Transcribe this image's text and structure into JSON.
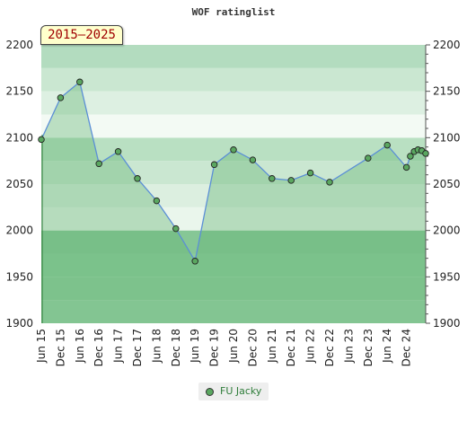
{
  "chart_data": {
    "type": "line",
    "title": "WOF ratinglist",
    "period_badge": "2015–2025",
    "xlabel": "",
    "ylabel": "",
    "ylim": [
      1900,
      2200
    ],
    "yticks": [
      1900,
      1950,
      2000,
      2050,
      2100,
      2150,
      2200
    ],
    "x_tick_labels": [
      "Jun 15",
      "Dec 15",
      "Jun 16",
      "Dec 16",
      "Jun 17",
      "Dec 17",
      "Jun 18",
      "Dec 18",
      "Jun 19",
      "Dec 19",
      "Jun 20",
      "Dec 20",
      "Jun 21",
      "Dec 21",
      "Jun 22",
      "Dec 22",
      "Jun 23",
      "Dec 23",
      "Jun 24",
      "Dec 24"
    ],
    "xlim": [
      2015.5,
      2025.5
    ],
    "legend_position": "bottom-center",
    "grid": false,
    "series": [
      {
        "name": "FU Jacky",
        "color": "#5aa760",
        "line_color": "#5b8fd6",
        "points": [
          {
            "x": 2015.5,
            "y": 2098
          },
          {
            "x": 2016.0,
            "y": 2143
          },
          {
            "x": 2016.5,
            "y": 2160
          },
          {
            "x": 2017.0,
            "y": 2072
          },
          {
            "x": 2017.5,
            "y": 2085
          },
          {
            "x": 2018.0,
            "y": 2056
          },
          {
            "x": 2018.5,
            "y": 2032
          },
          {
            "x": 2019.0,
            "y": 2002
          },
          {
            "x": 2019.5,
            "y": 1967
          },
          {
            "x": 2020.0,
            "y": 2071
          },
          {
            "x": 2020.5,
            "y": 2087
          },
          {
            "x": 2021.0,
            "y": 2076
          },
          {
            "x": 2021.5,
            "y": 2056
          },
          {
            "x": 2022.0,
            "y": 2054
          },
          {
            "x": 2022.5,
            "y": 2062
          },
          {
            "x": 2023.0,
            "y": 2052
          },
          {
            "x": 2024.0,
            "y": 2078
          },
          {
            "x": 2024.5,
            "y": 2092
          },
          {
            "x": 2025.0,
            "y": 2068
          },
          {
            "x": 2025.1,
            "y": 2080
          },
          {
            "x": 2025.2,
            "y": 2085
          },
          {
            "x": 2025.3,
            "y": 2087
          },
          {
            "x": 2025.4,
            "y": 2086
          },
          {
            "x": 2025.5,
            "y": 2083
          }
        ]
      }
    ],
    "background_bands": [
      {
        "from": 1900,
        "to": 1925,
        "color": "#98d0a6"
      },
      {
        "from": 1925,
        "to": 1950,
        "color": "#8fcc9d"
      },
      {
        "from": 1950,
        "to": 1975,
        "color": "#8ccb9b"
      },
      {
        "from": 1975,
        "to": 2000,
        "color": "#86c796"
      },
      {
        "from": 2000,
        "to": 2025,
        "color": "#eaf6ec"
      },
      {
        "from": 2025,
        "to": 2050,
        "color": "#dcefe0"
      },
      {
        "from": 2050,
        "to": 2075,
        "color": "#cae7d1"
      },
      {
        "from": 2075,
        "to": 2100,
        "color": "#b9e0c2"
      },
      {
        "from": 2100,
        "to": 2125,
        "color": "#f3faf4"
      },
      {
        "from": 2125,
        "to": 2150,
        "color": "#ddf0e2"
      },
      {
        "from": 2150,
        "to": 2175,
        "color": "#cae7d1"
      },
      {
        "from": 2175,
        "to": 2200,
        "color": "#b3dcbf"
      }
    ],
    "area_fill": "#61b470"
  }
}
